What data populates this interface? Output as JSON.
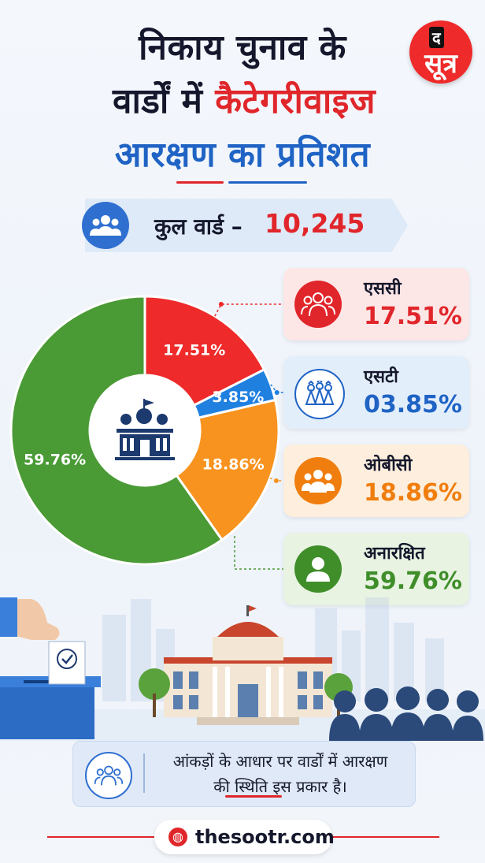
{
  "title": {
    "line1": "निकाय चुनाव के",
    "line2_part1": "वार्डों में",
    "line2_part2": "कैटेगरीवाइज",
    "line3": "आरक्षण का प्रतिशत"
  },
  "logo": {
    "top": "द",
    "main": "सूत्र",
    "color": "#ee2a2a"
  },
  "total": {
    "label": "कुल वार्ड –",
    "value": "10,245"
  },
  "chart_data": {
    "type": "pie",
    "categories": [
      "एससी",
      "एसटी",
      "ओबीसी",
      "अनारक्षित"
    ],
    "values": [
      17.51,
      3.85,
      18.86,
      59.76
    ],
    "data_labels": [
      "17.51%",
      "3.85%",
      "18.86%",
      "59.76%"
    ],
    "colors": [
      "#ee2a2a",
      "#1f80e0",
      "#f7931e",
      "#4a9a35"
    ],
    "donut": true
  },
  "legend_cards": [
    {
      "name": "एससी",
      "value": "17.51%",
      "bg": "#fde6e6",
      "color": "#e0262b",
      "icon": "people-group-icon"
    },
    {
      "name": "एसटी",
      "value": "03.85%",
      "bg": "#e3eefb",
      "color": "#1f63c4",
      "icon": "tribal-people-icon"
    },
    {
      "name": "ओबीसी",
      "value": "18.86%",
      "bg": "#fdeedd",
      "color": "#f07e0e",
      "icon": "people-group-icon"
    },
    {
      "name": "अनारक्षित",
      "value": "59.76%",
      "bg": "#e8f3e2",
      "color": "#3f8e2a",
      "icon": "person-icon"
    }
  ],
  "bottom_note": {
    "line1": "आंकड़ों के आधार पर वार्डों में आरक्षण",
    "line2": "की स्थिति इस प्रकार है।"
  },
  "footer": {
    "site": "thesootr.com"
  }
}
